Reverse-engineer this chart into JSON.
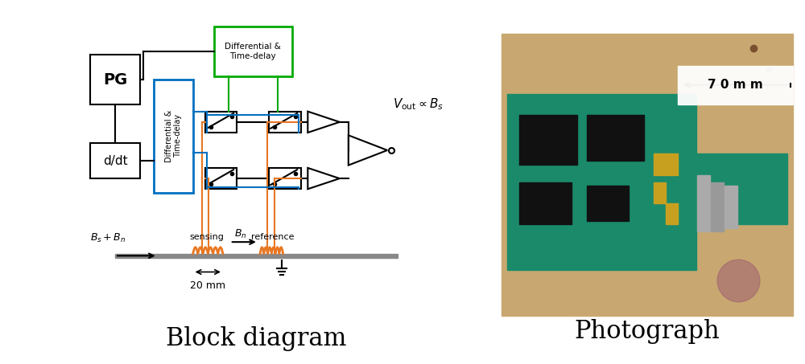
{
  "fig_width": 10.0,
  "fig_height": 4.53,
  "bg_color": "#ffffff",
  "block_diagram_label": "Block diagram",
  "photograph_label": "Photograph",
  "label_fontsize": 22,
  "pg_label": "PG",
  "ddt_label": "d/dt",
  "color_orange": "#E87722",
  "color_blue": "#0070C0",
  "color_green": "#00AA00",
  "color_black": "#000000"
}
